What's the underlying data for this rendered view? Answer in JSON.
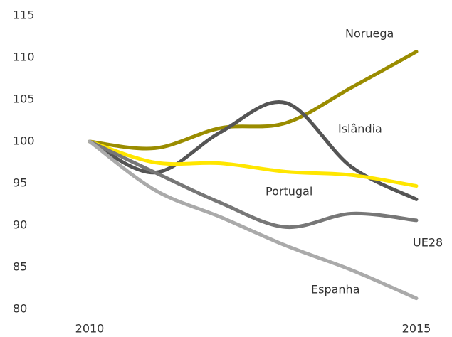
{
  "chart_data": {
    "type": "line",
    "x": [
      2010,
      2011,
      2012,
      2013,
      2014,
      2015
    ],
    "xlim": [
      2010,
      2015
    ],
    "xticks": [
      2010,
      2015
    ],
    "ylim": [
      80,
      115
    ],
    "yticks": [
      80,
      85,
      90,
      95,
      100,
      105,
      110,
      115
    ],
    "series": [
      {
        "name": "Noruega",
        "color": "#9a8c00",
        "values": [
          100,
          99.2,
          101.6,
          102.2,
          106.4,
          110.7
        ]
      },
      {
        "name": "Islândia",
        "color": "#555555",
        "values": [
          100,
          96.3,
          101.1,
          104.6,
          97.0,
          93.1
        ]
      },
      {
        "name": "Portugal",
        "color": "#ffe600",
        "values": [
          100,
          97.5,
          97.4,
          96.4,
          96.0,
          94.7
        ]
      },
      {
        "name": "UE28",
        "color": "#777777",
        "values": [
          100,
          96.3,
          92.7,
          89.8,
          91.4,
          90.6
        ]
      },
      {
        "name": "Espanha",
        "color": "#aaaaaa",
        "values": [
          100,
          94.2,
          91.0,
          87.6,
          84.7,
          81.3
        ]
      }
    ]
  }
}
